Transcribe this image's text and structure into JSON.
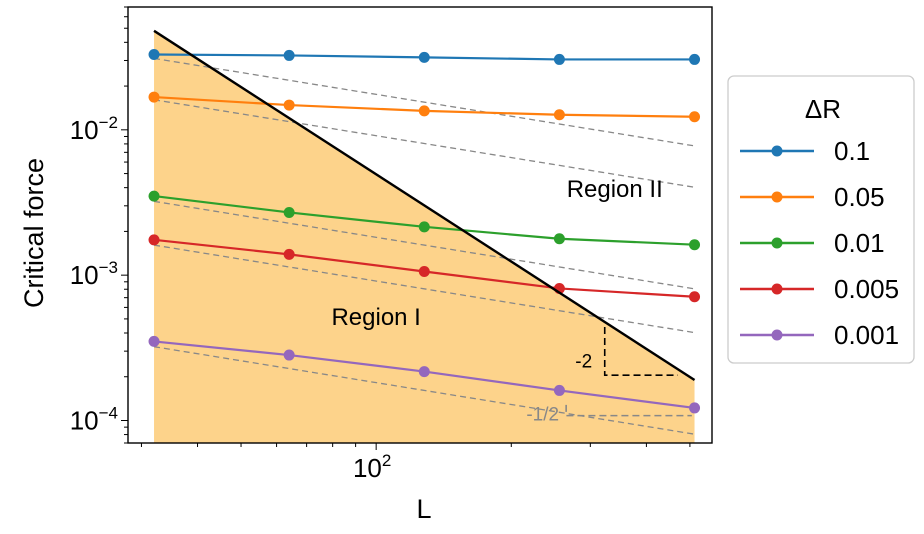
{
  "chart_data": {
    "type": "line",
    "xlabel": "L",
    "ylabel": "Critical force",
    "xscale": "log",
    "yscale": "log",
    "xlim": [
      28,
      560
    ],
    "ylim": [
      7e-05,
      0.07
    ],
    "x_ticks": [
      {
        "value": 100,
        "base": "10",
        "exp": "2"
      }
    ],
    "y_ticks": [
      {
        "value": 0.0001,
        "base": "10",
        "exp": "−4"
      },
      {
        "value": 0.001,
        "base": "10",
        "exp": "−3"
      },
      {
        "value": 0.01,
        "base": "10",
        "exp": "−2"
      }
    ],
    "x": [
      32,
      64,
      128,
      256,
      512
    ],
    "series": [
      {
        "name": "0.1",
        "color": "#1f77b4",
        "values": [
          0.033,
          0.0325,
          0.0315,
          0.0305,
          0.0305
        ]
      },
      {
        "name": "0.05",
        "color": "#ff7f0e",
        "values": [
          0.0168,
          0.0148,
          0.0135,
          0.0127,
          0.0123
        ]
      },
      {
        "name": "0.01",
        "color": "#2ca02c",
        "values": [
          0.0035,
          0.0027,
          0.00215,
          0.00178,
          0.00162
        ]
      },
      {
        "name": "0.005",
        "color": "#d62728",
        "values": [
          0.00175,
          0.00139,
          0.00106,
          0.00081,
          0.00071
        ]
      },
      {
        "name": "0.001",
        "color": "#9467bd",
        "values": [
          0.00035,
          0.000282,
          0.000217,
          0.000161,
          0.000122
        ]
      }
    ],
    "reference_lines": {
      "style": "dashed",
      "color": "#888888",
      "slope": -0.5,
      "start_values": [
        0.031,
        0.0161,
        0.00322,
        0.00161,
        0.000322
      ]
    },
    "boundary_line": {
      "color": "#000000",
      "slope": -2,
      "x": [
        32,
        512
      ],
      "y": [
        0.048,
        0.00019
      ]
    },
    "region_fill_color": "#fdd38b",
    "legend": {
      "title": "ΔR",
      "placement": "right outside",
      "entries": [
        "0.1",
        "0.05",
        "0.01",
        "0.005",
        "0.001"
      ]
    },
    "annotations": [
      {
        "text": "Region II",
        "x": 340,
        "y": 0.0038
      },
      {
        "text": "Region I",
        "x": 100,
        "y": 0.0005
      },
      {
        "text": "-2",
        "x": 290,
        "y": 0.00025,
        "color": "#000000"
      },
      {
        "text": "-1/2",
        "x": 235,
        "y": 0.000108,
        "color": "#888888"
      }
    ],
    "slope_triangles": [
      {
        "x0": 323,
        "x1": 470,
        "y_top": 0.00044,
        "y_bottom": 0.000205,
        "color": "#000000"
      },
      {
        "x0": 265,
        "x1": 505,
        "y_top": 0.000128,
        "y_bottom": 0.000108,
        "color": "#888888"
      }
    ]
  }
}
